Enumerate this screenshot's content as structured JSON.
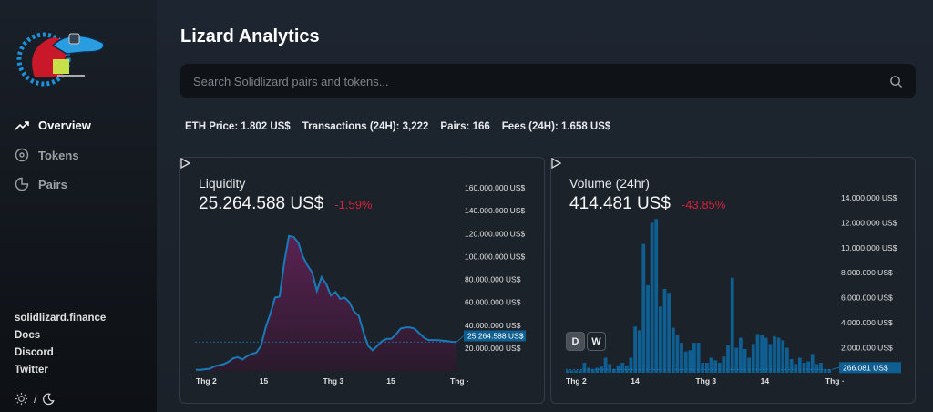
{
  "sidebar": {
    "nav": [
      {
        "label": "Overview",
        "icon": "trending-up-icon",
        "active": true
      },
      {
        "label": "Tokens",
        "icon": "target-icon"
      },
      {
        "label": "Pairs",
        "icon": "pie-chart-icon"
      }
    ],
    "links": [
      "solidlizard.finance",
      "Docs",
      "Discord",
      "Twitter"
    ],
    "theme_separator": "/"
  },
  "header": {
    "title": "Lizard Analytics"
  },
  "search": {
    "placeholder": "Search Solidlizard pairs and tokens..."
  },
  "stats": {
    "eth_price": "ETH Price: 1.802 US$",
    "transactions": "Transactions (24H): 3,222",
    "pairs": "Pairs: 166",
    "fees": "Fees (24H): 1.658 US$"
  },
  "colors": {
    "accent": "#1a6fa8",
    "negative": "#d4203a",
    "area": "#4a2244"
  },
  "chart_data": [
    {
      "type": "area",
      "title": "Liquidity",
      "value": "25.264.588 US$",
      "change": "-1.59%",
      "current_label": "25.264.588 US$",
      "unit": "M US$",
      "ylim": [
        0,
        160
      ],
      "yticks": [
        "160.000.000 US$",
        "140.000.000 US$",
        "120.000.000 US$",
        "100.000.000 US$",
        "80.000.000 US$",
        "60.000.000 US$",
        "40.000.000 US$",
        "20.000.000 US$"
      ],
      "xticks": [
        "Thg 2",
        "15",
        "Thg 3",
        "15",
        "Thg ·"
      ],
      "values": [
        1,
        1,
        1.5,
        2,
        4,
        5,
        6,
        8,
        11,
        12,
        10,
        13,
        15,
        16,
        22,
        38,
        50,
        64,
        65,
        95,
        118,
        117,
        112,
        100,
        92,
        86,
        70,
        82,
        76,
        66,
        69,
        63,
        64,
        60,
        52,
        48,
        34,
        22,
        18,
        22,
        26,
        28,
        28,
        32,
        37,
        38,
        38,
        37,
        33,
        29,
        27,
        27,
        27,
        26.5,
        26,
        25.5,
        25.3
      ]
    },
    {
      "type": "bar",
      "title": "Volume (24hr)",
      "value": "414.481 US$",
      "change": "-43.85%",
      "current_label": "266.081 US$",
      "unit": "M US$",
      "ylim": [
        0,
        14.5
      ],
      "yticks": [
        "14.000.000 US$",
        "12.000.000 US$",
        "10.000.000 US$",
        "8.000.000 US$",
        "6.000.000 US$",
        "4.000.000 US$",
        "2.000.000 US$"
      ],
      "xticks": [
        "Thg 2",
        "14",
        "Thg 3",
        "14",
        "Thg ·"
      ],
      "buttons": [
        "D",
        "W"
      ],
      "values": [
        0.2,
        0.2,
        0.2,
        0.2,
        0.8,
        0.4,
        0.3,
        0.4,
        0.5,
        1.2,
        0.7,
        0.3,
        0.6,
        0.8,
        0.6,
        1.2,
        3.7,
        3.4,
        10.3,
        7.0,
        12.0,
        12.3,
        5.3,
        6.7,
        6.4,
        3.6,
        3.0,
        2.4,
        1.7,
        1.8,
        2.4,
        2.4,
        0.8,
        0.8,
        1.2,
        1.0,
        0.8,
        1.3,
        2.2,
        7.6,
        2.0,
        2.8,
        1.9,
        1.2,
        2.3,
        3.1,
        3.0,
        2.8,
        2.3,
        2.9,
        2.8,
        2.6,
        2.0,
        1.1,
        0.7,
        1.2,
        0.8,
        0.9,
        1.5,
        0.7,
        0.8,
        0.3,
        0.27
      ]
    }
  ]
}
